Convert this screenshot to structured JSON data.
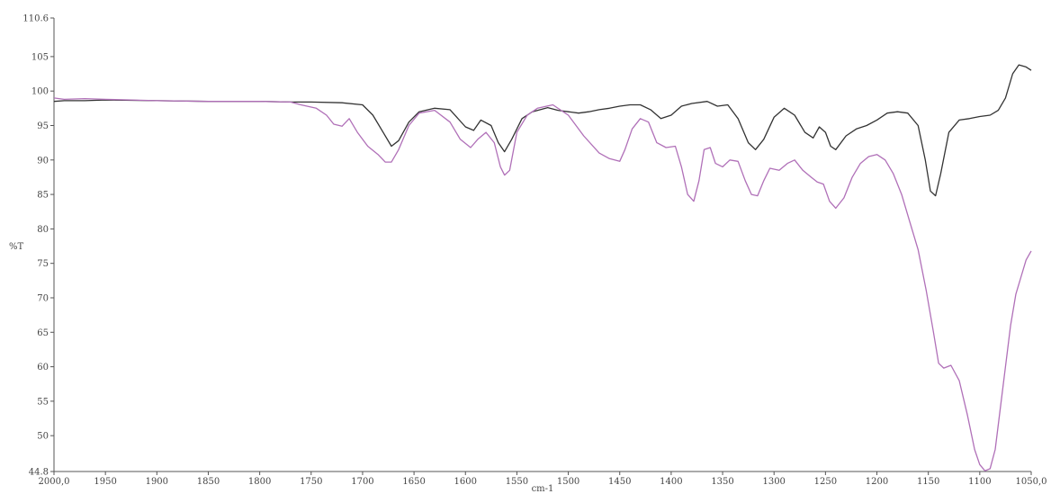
{
  "chart_data": {
    "type": "line",
    "xlabel": "cm-1",
    "ylabel": "%T",
    "xlim": [
      2000.0,
      1050.0
    ],
    "ylim": [
      44.8,
      110.6
    ],
    "x_reversed": true,
    "grid": false,
    "x_ticks": [
      {
        "value": 2000,
        "label": "2000,0"
      },
      {
        "value": 1950,
        "label": "1950"
      },
      {
        "value": 1900,
        "label": "1900"
      },
      {
        "value": 1850,
        "label": "1850"
      },
      {
        "value": 1800,
        "label": "1800"
      },
      {
        "value": 1750,
        "label": "1750"
      },
      {
        "value": 1700,
        "label": "1700"
      },
      {
        "value": 1650,
        "label": "1650"
      },
      {
        "value": 1600,
        "label": "1600"
      },
      {
        "value": 1550,
        "label": "1550"
      },
      {
        "value": 1500,
        "label": "1500"
      },
      {
        "value": 1450,
        "label": "1450"
      },
      {
        "value": 1400,
        "label": "1400"
      },
      {
        "value": 1350,
        "label": "1350"
      },
      {
        "value": 1300,
        "label": "1300"
      },
      {
        "value": 1250,
        "label": "1250"
      },
      {
        "value": 1200,
        "label": "1200"
      },
      {
        "value": 1150,
        "label": "1150"
      },
      {
        "value": 1100,
        "label": "1100"
      },
      {
        "value": 1050,
        "label": "1050,0"
      }
    ],
    "y_ticks": [
      {
        "value": 110.6,
        "label": "110.6"
      },
      {
        "value": 105,
        "label": "105"
      },
      {
        "value": 100,
        "label": "100"
      },
      {
        "value": 95,
        "label": "95"
      },
      {
        "value": 90,
        "label": "90"
      },
      {
        "value": 85,
        "label": "85"
      },
      {
        "value": 80,
        "label": "80"
      },
      {
        "value": 75,
        "label": "75"
      },
      {
        "value": 70,
        "label": "70"
      },
      {
        "value": 65,
        "label": "65"
      },
      {
        "value": 60,
        "label": "60"
      },
      {
        "value": 55,
        "label": "55"
      },
      {
        "value": 50,
        "label": "50"
      },
      {
        "value": 44.8,
        "label": "44.8"
      }
    ],
    "series": [
      {
        "color": "#333333",
        "x": [
          2000,
          1990,
          1970,
          1950,
          1900,
          1850,
          1800,
          1770,
          1750,
          1720,
          1700,
          1690,
          1680,
          1672,
          1665,
          1655,
          1645,
          1630,
          1615,
          1600,
          1592,
          1585,
          1575,
          1568,
          1562,
          1555,
          1545,
          1535,
          1520,
          1510,
          1500,
          1490,
          1480,
          1470,
          1460,
          1450,
          1440,
          1430,
          1420,
          1410,
          1400,
          1390,
          1380,
          1365,
          1355,
          1345,
          1335,
          1325,
          1318,
          1310,
          1300,
          1290,
          1280,
          1270,
          1262,
          1256,
          1250,
          1245,
          1240,
          1230,
          1220,
          1210,
          1200,
          1190,
          1180,
          1170,
          1160,
          1153,
          1148,
          1143,
          1138,
          1130,
          1120,
          1110,
          1100,
          1090,
          1082,
          1075,
          1068,
          1062,
          1055,
          1050
        ],
        "y": [
          98.5,
          98.6,
          98.6,
          98.7,
          98.6,
          98.5,
          98.5,
          98.4,
          98.4,
          98.3,
          98.0,
          96.5,
          94.0,
          92.0,
          92.8,
          95.5,
          97.0,
          97.5,
          97.3,
          94.8,
          94.3,
          95.8,
          95.0,
          92.5,
          91.2,
          93.0,
          96.0,
          97.0,
          97.6,
          97.2,
          97.0,
          96.8,
          97.0,
          97.3,
          97.5,
          97.8,
          98.0,
          98.0,
          97.3,
          96.0,
          96.5,
          97.8,
          98.2,
          98.5,
          97.8,
          98.0,
          96.0,
          92.5,
          91.5,
          93.0,
          96.2,
          97.5,
          96.5,
          94.0,
          93.2,
          94.8,
          94.0,
          92.0,
          91.5,
          93.5,
          94.5,
          95.0,
          95.8,
          96.8,
          97.0,
          96.8,
          95.0,
          90.0,
          85.5,
          84.8,
          88.0,
          94.0,
          95.8,
          96.0,
          96.3,
          96.5,
          97.2,
          99.0,
          102.5,
          103.8,
          103.5,
          103.0
        ]
      },
      {
        "color": "#b070b8",
        "x": [
          2000,
          1990,
          1970,
          1950,
          1900,
          1850,
          1800,
          1770,
          1760,
          1745,
          1735,
          1728,
          1720,
          1713,
          1705,
          1695,
          1685,
          1678,
          1672,
          1665,
          1655,
          1645,
          1630,
          1615,
          1605,
          1595,
          1588,
          1580,
          1572,
          1566,
          1562,
          1557,
          1550,
          1540,
          1530,
          1515,
          1500,
          1485,
          1470,
          1460,
          1450,
          1445,
          1438,
          1430,
          1422,
          1414,
          1405,
          1396,
          1390,
          1384,
          1378,
          1373,
          1368,
          1362,
          1357,
          1350,
          1343,
          1335,
          1328,
          1322,
          1316,
          1310,
          1304,
          1295,
          1287,
          1280,
          1272,
          1264,
          1258,
          1252,
          1246,
          1240,
          1232,
          1224,
          1216,
          1208,
          1200,
          1192,
          1184,
          1176,
          1168,
          1160,
          1152,
          1145,
          1140,
          1135,
          1128,
          1120,
          1112,
          1105,
          1100,
          1095,
          1090,
          1085,
          1080,
          1075,
          1070,
          1065,
          1060,
          1055,
          1050
        ],
        "y": [
          99.0,
          98.8,
          98.9,
          98.8,
          98.6,
          98.5,
          98.5,
          98.4,
          98.0,
          97.5,
          96.5,
          95.2,
          94.9,
          96.0,
          94.0,
          92.0,
          90.8,
          89.7,
          89.7,
          91.5,
          95.0,
          96.8,
          97.2,
          95.5,
          93.0,
          91.8,
          93.0,
          94.0,
          92.5,
          89.0,
          87.8,
          88.5,
          94.0,
          96.5,
          97.5,
          98.0,
          96.5,
          93.5,
          91.0,
          90.2,
          89.8,
          91.5,
          94.5,
          96.0,
          95.5,
          92.5,
          91.8,
          92.0,
          89.0,
          85.0,
          84.0,
          87.0,
          91.5,
          91.8,
          89.5,
          89.0,
          90.0,
          89.8,
          87.0,
          85.0,
          84.8,
          87.0,
          88.8,
          88.5,
          89.5,
          90.0,
          88.5,
          87.5,
          86.8,
          86.5,
          84.0,
          83.0,
          84.5,
          87.5,
          89.5,
          90.5,
          90.8,
          90.0,
          88.0,
          85.0,
          81.0,
          77.0,
          71.0,
          65.0,
          60.5,
          59.8,
          60.2,
          58.0,
          53.0,
          48.0,
          45.8,
          44.9,
          45.2,
          48.0,
          54.0,
          60.0,
          66.0,
          70.5,
          73.0,
          75.5,
          76.8
        ]
      }
    ]
  }
}
